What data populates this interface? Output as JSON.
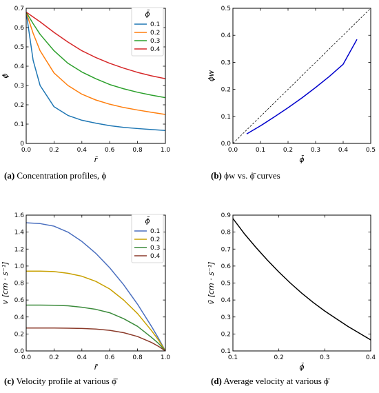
{
  "chart_data": [
    {
      "id": "a",
      "type": "line",
      "xlabel": "r̄",
      "ylabel": "ϕ",
      "xlim": [
        0,
        1.0
      ],
      "ylim": [
        0,
        0.7
      ],
      "xticks": [
        "0.0",
        "0.2",
        "0.4",
        "0.6",
        "0.8",
        "1.0"
      ],
      "yticks": [
        "0",
        "0.1",
        "0.2",
        "0.3",
        "0.4",
        "0.5",
        "0.6",
        "0.7"
      ],
      "legend": {
        "title": "ϕ̄",
        "position": "top-right"
      },
      "x": [
        0,
        0.05,
        0.1,
        0.2,
        0.3,
        0.4,
        0.5,
        0.6,
        0.7,
        0.8,
        0.9,
        1.0
      ],
      "series": [
        {
          "name": "0.1",
          "color": "#1f77b4",
          "values": [
            0.68,
            0.43,
            0.3,
            0.19,
            0.145,
            0.12,
            0.105,
            0.092,
            0.083,
            0.077,
            0.072,
            0.067
          ]
        },
        {
          "name": "0.2",
          "color": "#ff7f0e",
          "values": [
            0.68,
            0.57,
            0.48,
            0.365,
            0.3,
            0.255,
            0.225,
            0.203,
            0.186,
            0.173,
            0.161,
            0.15
          ]
        },
        {
          "name": "0.3",
          "color": "#2ca02c",
          "values": [
            0.68,
            0.62,
            0.565,
            0.48,
            0.415,
            0.37,
            0.335,
            0.305,
            0.283,
            0.265,
            0.25,
            0.237
          ]
        },
        {
          "name": "0.4",
          "color": "#d62728",
          "values": [
            0.68,
            0.655,
            0.63,
            0.575,
            0.525,
            0.48,
            0.445,
            0.415,
            0.39,
            0.368,
            0.35,
            0.335
          ]
        }
      ]
    },
    {
      "id": "b",
      "type": "line",
      "xlabel": "ϕ̄",
      "ylabel": "ϕw",
      "xlim": [
        0,
        0.5
      ],
      "ylim": [
        0,
        0.5
      ],
      "xticks": [
        "0.0",
        "0.1",
        "0.2",
        "0.3",
        "0.4",
        "0.5"
      ],
      "yticks": [
        "0.0",
        "0.1",
        "0.2",
        "0.3",
        "0.4",
        "0.5"
      ],
      "x": [
        0.05,
        0.1,
        0.15,
        0.2,
        0.25,
        0.3,
        0.35,
        0.4,
        0.45
      ],
      "series": [
        {
          "color": "#0000cc",
          "values": [
            0.035,
            0.065,
            0.098,
            0.132,
            0.168,
            0.207,
            0.248,
            0.293,
            0.385
          ]
        },
        {
          "color": "#000000",
          "dashed": true,
          "x": [
            0,
            0.5
          ],
          "values": [
            0,
            0.5
          ]
        }
      ]
    },
    {
      "id": "c",
      "type": "line",
      "xlabel": "r̄",
      "ylabel": "v [cm · s⁻¹]",
      "xlim": [
        0,
        1.0
      ],
      "ylim": [
        0,
        1.6
      ],
      "xticks": [
        "0.0",
        "0.2",
        "0.4",
        "0.6",
        "0.8",
        "1.0"
      ],
      "yticks": [
        "0.0",
        "0.2",
        "0.4",
        "0.6",
        "0.8",
        "1.0",
        "1.2",
        "1.4",
        "1.6"
      ],
      "legend": {
        "title": "ϕ̄",
        "position": "top-right"
      },
      "x": [
        0,
        0.1,
        0.2,
        0.3,
        0.4,
        0.5,
        0.6,
        0.7,
        0.8,
        0.9,
        0.95,
        1.0
      ],
      "series": [
        {
          "name": "0.1",
          "color": "#4a6fbf",
          "values": [
            1.51,
            1.5,
            1.47,
            1.4,
            1.29,
            1.15,
            0.98,
            0.78,
            0.55,
            0.29,
            0.15,
            0.0
          ]
        },
        {
          "name": "0.2",
          "color": "#c8a000",
          "values": [
            0.94,
            0.94,
            0.935,
            0.915,
            0.88,
            0.82,
            0.73,
            0.6,
            0.44,
            0.24,
            0.13,
            0.0
          ]
        },
        {
          "name": "0.3",
          "color": "#3a8a3a",
          "values": [
            0.54,
            0.54,
            0.538,
            0.532,
            0.515,
            0.49,
            0.45,
            0.38,
            0.29,
            0.16,
            0.09,
            0.0
          ]
        },
        {
          "name": "0.4",
          "color": "#8b3a2a",
          "values": [
            0.27,
            0.27,
            0.27,
            0.268,
            0.265,
            0.258,
            0.243,
            0.215,
            0.17,
            0.1,
            0.055,
            0.0
          ]
        }
      ]
    },
    {
      "id": "d",
      "type": "line",
      "xlabel": "ϕ̄",
      "ylabel": "v̄ [cm · s⁻¹]",
      "xlim": [
        0.1,
        0.4
      ],
      "ylim": [
        0.1,
        0.9
      ],
      "xticks": [
        "0.1",
        "0.2",
        "0.3",
        "0.4"
      ],
      "yticks": [
        "0.1",
        "0.2",
        "0.3",
        "0.4",
        "0.5",
        "0.6",
        "0.7",
        "0.8",
        "0.9"
      ],
      "x": [
        0.1,
        0.125,
        0.15,
        0.175,
        0.2,
        0.225,
        0.25,
        0.275,
        0.3,
        0.325,
        0.35,
        0.375,
        0.4
      ],
      "series": [
        {
          "color": "#000000",
          "values": [
            0.88,
            0.79,
            0.71,
            0.635,
            0.565,
            0.5,
            0.44,
            0.385,
            0.335,
            0.29,
            0.245,
            0.205,
            0.165
          ]
        }
      ]
    }
  ],
  "captions": {
    "a": {
      "letter": "(a)",
      "text": " Concentration profiles, ϕ"
    },
    "b": {
      "letter": "(b)",
      "text": " ϕw vs. ϕ̄ curves"
    },
    "c": {
      "letter": "(c)",
      "text": " Velocity profile at various ϕ̄"
    },
    "d": {
      "letter": "(d)",
      "text": " Average velocity at various ϕ̄"
    }
  }
}
